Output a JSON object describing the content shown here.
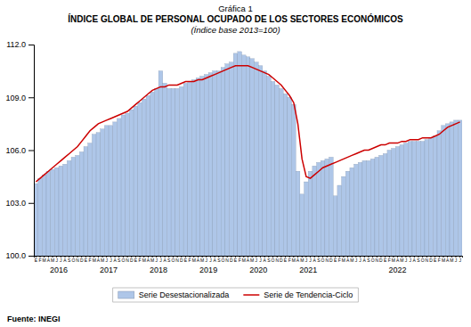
{
  "chart_data": {
    "type": "bar",
    "title": [
      "Gráfica 1",
      "ÍNDICE GLOBAL DE PERSONAL OCUPADO DE LOS SECTORES ECONÓMICOS",
      "(Índice base 2013=100)"
    ],
    "source": "Fuente: INEGI",
    "categories": [
      "E",
      "F",
      "M",
      "A",
      "M",
      "J",
      "J",
      "A",
      "S",
      "O",
      "N",
      "D",
      "E",
      "F",
      "M",
      "A",
      "M",
      "J",
      "J",
      "A",
      "S",
      "O",
      "N",
      "D",
      "E",
      "F",
      "M",
      "A",
      "M",
      "J",
      "J",
      "A",
      "S",
      "O",
      "N",
      "D",
      "E",
      "F",
      "M",
      "A",
      "M",
      "J",
      "J",
      "A",
      "S",
      "O",
      "N",
      "D",
      "E",
      "F",
      "M",
      "A",
      "M",
      "J",
      "J",
      "A",
      "S",
      "O",
      "N",
      "D",
      "E",
      "F",
      "M",
      "A",
      "M",
      "J",
      "J",
      "A",
      "S",
      "O",
      "N",
      "D",
      "E",
      "F",
      "M",
      "A",
      "M",
      "J",
      "J",
      "A",
      "S",
      "O",
      "N",
      "D",
      "E",
      "F",
      "M",
      "A",
      "M",
      "J",
      "J",
      "A",
      "S",
      "O",
      "N",
      "D",
      "E",
      "F",
      "M",
      "A",
      "M",
      "J",
      "J"
    ],
    "category_groups": [
      "2016",
      "2017",
      "2018",
      "2019",
      "2020",
      "2021",
      "2022"
    ],
    "series": [
      {
        "name": "Serie Desestacionalizada",
        "type": "bar",
        "color": "#aec6e8",
        "values": [
          104.1,
          104.4,
          104.6,
          104.8,
          104.9,
          105.0,
          105.1,
          105.2,
          105.4,
          105.6,
          105.7,
          105.9,
          106.2,
          106.4,
          106.9,
          107.0,
          107.2,
          107.4,
          107.4,
          107.6,
          107.8,
          108.0,
          108.1,
          108.3,
          108.5,
          108.7,
          108.9,
          109.1,
          109.3,
          109.5,
          110.5,
          109.8,
          109.5,
          109.5,
          109.5,
          109.6,
          109.8,
          109.9,
          110.0,
          110.1,
          110.2,
          110.3,
          110.4,
          110.5,
          110.5,
          110.7,
          110.9,
          111.0,
          111.5,
          111.6,
          111.4,
          111.3,
          111.2,
          111.0,
          110.8,
          110.5,
          110.2,
          109.9,
          109.7,
          109.5,
          109.2,
          109.0,
          108.6,
          104.8,
          103.5,
          104.2,
          104.8,
          105.1,
          105.3,
          105.4,
          105.5,
          105.6,
          103.4,
          104.0,
          104.5,
          104.8,
          105.0,
          105.2,
          105.3,
          105.4,
          105.4,
          105.5,
          105.6,
          105.7,
          105.8,
          106.0,
          106.1,
          106.2,
          106.3,
          106.4,
          106.5,
          106.5,
          106.5,
          106.5,
          106.6,
          106.7,
          106.8,
          107.1,
          107.4,
          107.5,
          107.6,
          107.7,
          107.7
        ]
      },
      {
        "name": "Serie de Tendencia-Ciclo",
        "type": "line",
        "color": "#cc0000",
        "values": [
          104.2,
          104.4,
          104.6,
          104.8,
          105.0,
          105.2,
          105.4,
          105.6,
          105.8,
          106.0,
          106.2,
          106.5,
          106.8,
          107.1,
          107.3,
          107.5,
          107.6,
          107.7,
          107.8,
          107.9,
          108.0,
          108.1,
          108.2,
          108.4,
          108.6,
          108.8,
          109.0,
          109.2,
          109.4,
          109.5,
          109.6,
          109.6,
          109.7,
          109.7,
          109.7,
          109.8,
          109.9,
          109.9,
          109.9,
          110.0,
          110.0,
          110.1,
          110.2,
          110.3,
          110.4,
          110.5,
          110.6,
          110.7,
          110.8,
          110.8,
          110.8,
          110.8,
          110.7,
          110.6,
          110.5,
          110.4,
          110.3,
          110.1,
          109.9,
          109.7,
          109.4,
          109.1,
          108.7,
          107.5,
          105.5,
          104.5,
          104.4,
          104.6,
          104.8,
          105.0,
          105.1,
          105.2,
          105.3,
          105.4,
          105.5,
          105.6,
          105.7,
          105.8,
          105.9,
          106.0,
          106.0,
          106.1,
          106.2,
          106.3,
          106.3,
          106.4,
          106.4,
          106.4,
          106.5,
          106.5,
          106.6,
          106.6,
          106.6,
          106.7,
          106.7,
          106.7,
          106.8,
          106.9,
          107.1,
          107.3,
          107.4,
          107.5,
          107.6
        ]
      }
    ],
    "ylim": [
      100.0,
      112.0
    ],
    "yticks": [
      {
        "value": 100.0,
        "label": "100.0"
      },
      {
        "value": 103.0,
        "label": "103.0"
      },
      {
        "value": 106.0,
        "label": "106.0"
      },
      {
        "value": 109.0,
        "label": "109.0"
      },
      {
        "value": 112.0,
        "label": "112.0"
      }
    ],
    "grid": false,
    "legend": "bottom"
  }
}
